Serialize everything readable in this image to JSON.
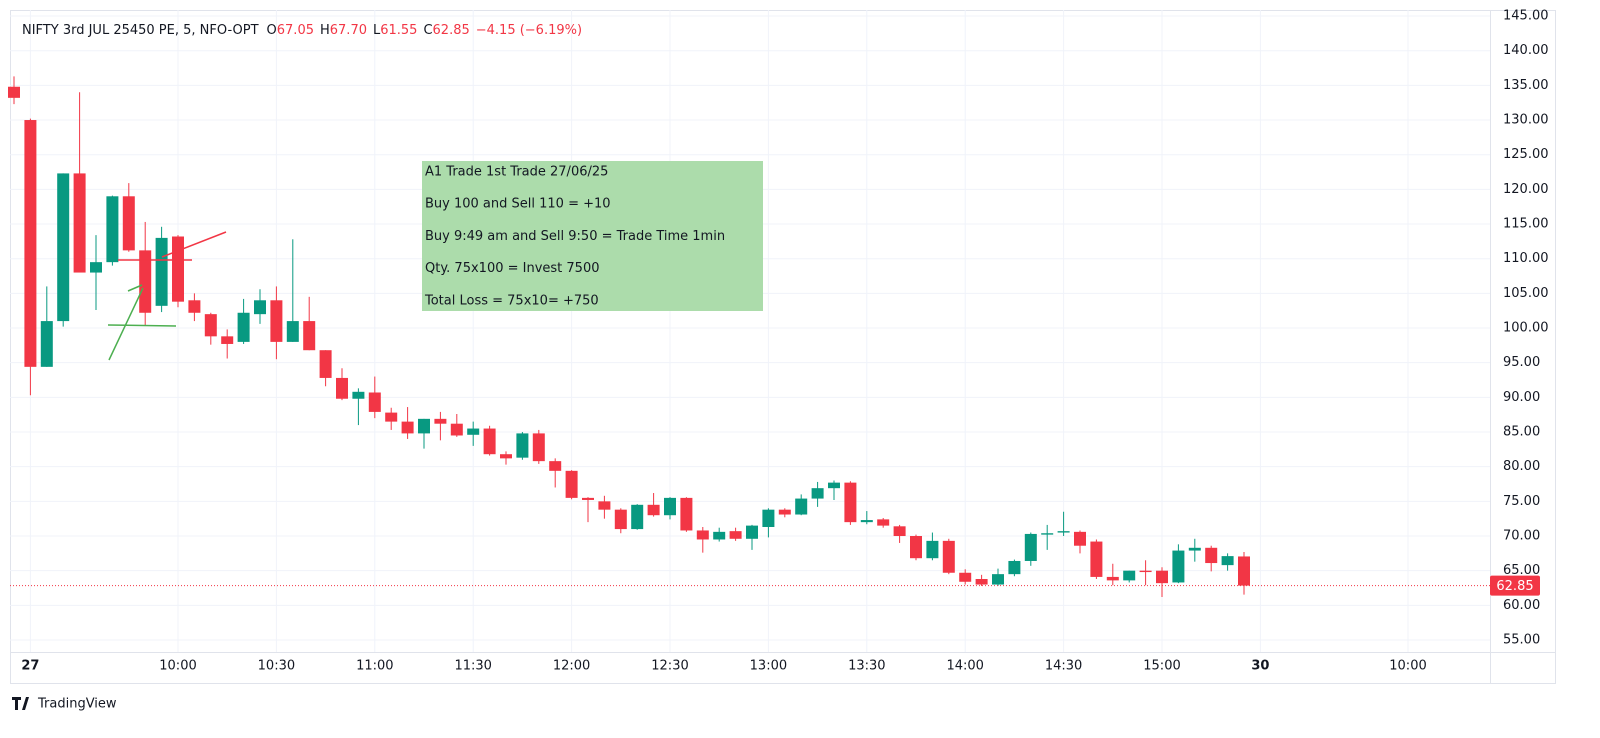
{
  "chart_data": {
    "type": "candlestick",
    "title": "NIFTY 3rd JUL 25450 PE, 5, NFO-OPT",
    "ohlc_legend": [
      {
        "key": "O",
        "value": "67.05"
      },
      {
        "key": "H",
        "value": "67.70"
      },
      {
        "key": "L",
        "value": "61.55"
      },
      {
        "key": "C",
        "value": "62.85"
      }
    ],
    "change": "−4.15 (−6.19%)",
    "categories": [
      null,
      "27",
      null,
      null,
      null,
      null,
      null,
      null,
      null,
      null,
      "10:00",
      null,
      null,
      null,
      null,
      null,
      "10:30",
      null,
      null,
      null,
      null,
      null,
      "11:00",
      null,
      null,
      null,
      null,
      null,
      "11:30",
      null,
      null,
      null,
      null,
      null,
      "12:00",
      null,
      null,
      null,
      null,
      null,
      "12:30",
      null,
      null,
      null,
      null,
      null,
      "13:00",
      null,
      null,
      null,
      null,
      null,
      "13:30",
      null,
      null,
      null,
      null,
      null,
      "14:00",
      null,
      null,
      null,
      null,
      null,
      "14:30",
      null,
      null,
      null,
      null,
      null,
      "15:00",
      null,
      null,
      null,
      null,
      null,
      "30",
      null,
      null,
      null,
      null,
      null,
      null,
      null,
      null,
      "10:00",
      null,
      null,
      null,
      null,
      null
    ],
    "open": [
      134.8,
      130,
      94.4,
      101,
      122.3,
      108,
      109.5,
      119,
      111.2,
      103.2,
      113.2,
      104,
      102,
      98.8,
      98,
      102,
      104,
      98,
      101,
      96.8,
      92.8,
      89.8,
      90.7,
      87.8,
      86.5,
      84.8,
      86.9,
      86.2,
      84.6,
      85.5,
      81.8,
      81.3,
      84.8,
      80.8,
      79.4,
      75.5,
      75,
      73.8,
      71,
      74.5,
      73,
      75.5,
      70.8,
      69.5,
      70.7,
      69.6,
      71.3,
      73.8,
      73.1,
      75.4,
      76.9,
      77.7,
      72,
      72.4,
      71.4,
      70,
      66.8,
      69.3,
      64.7,
      63.8,
      63,
      64.5,
      66.4,
      70.2,
      70.5,
      70.6,
      69.2,
      64.1,
      63.6,
      65,
      65,
      63.3,
      67.9,
      68.3,
      65.8,
      67.05,
      null,
      null,
      null,
      null,
      null,
      null,
      null,
      null,
      null,
      null,
      null,
      null,
      null,
      null,
      null
    ],
    "high": [
      136.3,
      130.2,
      106,
      122.3,
      134,
      113.4,
      119.1,
      120.9,
      115.3,
      114.6,
      113.4,
      105,
      102.2,
      99.8,
      104.2,
      105.6,
      106,
      112.8,
      104.5,
      96.8,
      94.2,
      91.3,
      93,
      88.5,
      88.6,
      86.9,
      87.9,
      87.6,
      86.5,
      85.9,
      82.2,
      85,
      85.3,
      81.2,
      79.5,
      75.6,
      75.8,
      74,
      74.6,
      76.2,
      75.6,
      75.6,
      71.3,
      71.2,
      71.2,
      71.6,
      74,
      74,
      76,
      77.8,
      78,
      77.9,
      73.6,
      72.6,
      71.6,
      70.2,
      70.5,
      69.6,
      65.2,
      64.4,
      65.3,
      66.6,
      70.5,
      71.6,
      73.5,
      70.8,
      69.5,
      66,
      65,
      66.5,
      65.5,
      68.8,
      69.6,
      68.6,
      67.5,
      67.7,
      null,
      null,
      null,
      null,
      null,
      null,
      null,
      null,
      null,
      null,
      null,
      null,
      null,
      null,
      null
    ],
    "low": [
      132.3,
      90.3,
      94.4,
      100.2,
      108,
      102.6,
      109,
      111,
      100.4,
      102.3,
      103,
      101,
      97.6,
      95.6,
      97.7,
      100.6,
      95.5,
      98,
      96.8,
      91.6,
      89.6,
      86,
      87,
      85.3,
      84,
      82.6,
      83.8,
      84.3,
      83,
      81.6,
      80.3,
      81,
      80.4,
      77,
      75.3,
      72,
      72.5,
      70.4,
      70.9,
      72.8,
      72.4,
      70.6,
      67.6,
      69.2,
      69.3,
      68,
      69.8,
      72.7,
      73,
      74.2,
      75.2,
      71.6,
      71.7,
      71.2,
      69,
      66.5,
      66.5,
      64.5,
      63,
      62.8,
      62.8,
      64.2,
      65.7,
      68,
      70,
      67.5,
      63.8,
      62.9,
      63.3,
      62.9,
      61.2,
      63.2,
      66.3,
      64.9,
      65,
      61.55,
      null,
      null,
      null,
      null,
      null,
      null,
      null,
      null,
      null,
      null,
      null,
      null,
      null,
      null,
      null
    ],
    "close": [
      133.2,
      94.4,
      101,
      122.3,
      108,
      109.5,
      119,
      111.2,
      102.2,
      113,
      103.8,
      102.2,
      98.8,
      97.7,
      102.2,
      104,
      98,
      101,
      96.8,
      92.8,
      89.8,
      90.8,
      87.9,
      86.5,
      84.8,
      86.9,
      86.2,
      84.5,
      85.5,
      81.8,
      81.2,
      84.8,
      80.8,
      79.4,
      75.5,
      75.2,
      73.8,
      71,
      74.5,
      73,
      75.5,
      70.8,
      69.5,
      70.6,
      69.6,
      71.5,
      73.8,
      73.1,
      75.4,
      76.9,
      77.7,
      72,
      72.3,
      71.5,
      70,
      66.8,
      69.3,
      64.7,
      63.4,
      63,
      64.5,
      66.4,
      70.3,
      70.4,
      70.7,
      68.6,
      64.1,
      63.6,
      65,
      64.8,
      63.2,
      67.9,
      68.3,
      66.1,
      67.1,
      62.85,
      null,
      null,
      null,
      null,
      null,
      null,
      null,
      null,
      null,
      null,
      null,
      null,
      null,
      null,
      null
    ],
    "up_color": "#089981",
    "down_color": "#f23645",
    "ylim": [
      53.27,
      145.87
    ],
    "yticks": [
      {
        "value": 55,
        "label": "55.00"
      },
      {
        "value": 60,
        "label": "60.00"
      },
      {
        "value": 65,
        "label": "65.00"
      },
      {
        "value": 70,
        "label": "70.00"
      },
      {
        "value": 75,
        "label": "75.00"
      },
      {
        "value": 80,
        "label": "80.00"
      },
      {
        "value": 85,
        "label": "85.00"
      },
      {
        "value": 90,
        "label": "90.00"
      },
      {
        "value": 95,
        "label": "95.00"
      },
      {
        "value": 100,
        "label": "100.00"
      },
      {
        "value": 105,
        "label": "105.00"
      },
      {
        "value": 110,
        "label": "110.00"
      },
      {
        "value": 115,
        "label": "115.00"
      },
      {
        "value": 120,
        "label": "120.00"
      },
      {
        "value": 125,
        "label": "125.00"
      },
      {
        "value": 130,
        "label": "130.00"
      },
      {
        "value": 135,
        "label": "135.00"
      },
      {
        "value": 140,
        "label": "140.00"
      },
      {
        "value": 145,
        "label": "145.00"
      }
    ],
    "last_price": {
      "value": 62.85,
      "label": "62.85"
    },
    "grid": true,
    "annotation": [
      "A1 Trade  1st Trade 27/06/25",
      "Buy 100 and Sell 110 =  +10",
      "Buy 9:49 am and Sell 9:50 = Trade Time 1min",
      "Qty. 75x100 = Invest  7500",
      "Total Loss = 75x10= +750"
    ]
  },
  "brand": "TradingView"
}
